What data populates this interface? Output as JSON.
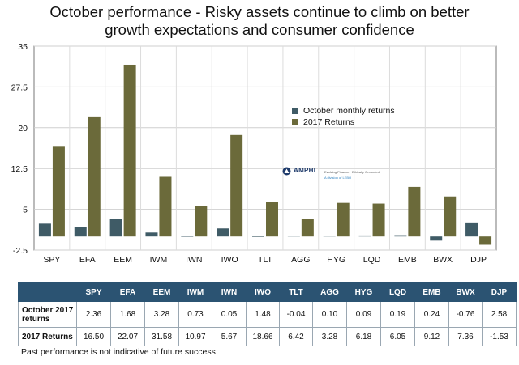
{
  "title_line1": "October performance - Risky assets continue to climb on better",
  "title_line2": "growth expectations and consumer confidence",
  "chart_data": {
    "type": "bar",
    "categories": [
      "SPY",
      "EFA",
      "EEM",
      "IWM",
      "IWN",
      "IWO",
      "TLT",
      "AGG",
      "HYG",
      "LQD",
      "EMB",
      "BWX",
      "DJP"
    ],
    "series": [
      {
        "name": "October monthly returns",
        "color": "#3f5b66",
        "values": [
          2.36,
          1.68,
          3.28,
          0.73,
          0.05,
          1.48,
          -0.04,
          0.1,
          0.09,
          0.19,
          0.24,
          -0.76,
          2.58
        ]
      },
      {
        "name": "2017 Returns",
        "color": "#6b6a3a",
        "values": [
          16.5,
          22.07,
          31.58,
          10.97,
          5.67,
          18.66,
          6.42,
          3.28,
          6.18,
          6.05,
          9.12,
          7.36,
          -1.53
        ]
      }
    ],
    "yticks": [
      "35",
      "27.5",
      "20",
      "12.5",
      "5",
      "-2.5"
    ],
    "ylim": [
      -2.5,
      35
    ],
    "grid": true,
    "legend": "center-right"
  },
  "legend": {
    "oct_label": "October monthly returns",
    "ytd_label": "2017 Returns"
  },
  "logo": {
    "name": "AMPHI",
    "tagline": "Evolving Finance · Ethically Grounded",
    "division": "A division of LEBO"
  },
  "table": {
    "headers": [
      "",
      "SPY",
      "EFA",
      "EEM",
      "IWM",
      "IWN",
      "IWO",
      "TLT",
      "AGG",
      "HYG",
      "LQD",
      "EMB",
      "BWX",
      "DJP"
    ],
    "row1_label": "October 2017 returns",
    "row1": [
      "2.36",
      "1.68",
      "3.28",
      "0.73",
      "0.05",
      "1.48",
      "-0.04",
      "0.10",
      "0.09",
      "0.19",
      "0.24",
      "-0.76",
      "2.58"
    ],
    "row2_label": "2017 Returns",
    "row2": [
      "16.50",
      "22.07",
      "31.58",
      "10.97",
      "5.67",
      "18.66",
      "6.42",
      "3.28",
      "6.18",
      "6.05",
      "9.12",
      "7.36",
      "-1.53"
    ]
  },
  "footnote": "Past performance is not indicative of future success"
}
